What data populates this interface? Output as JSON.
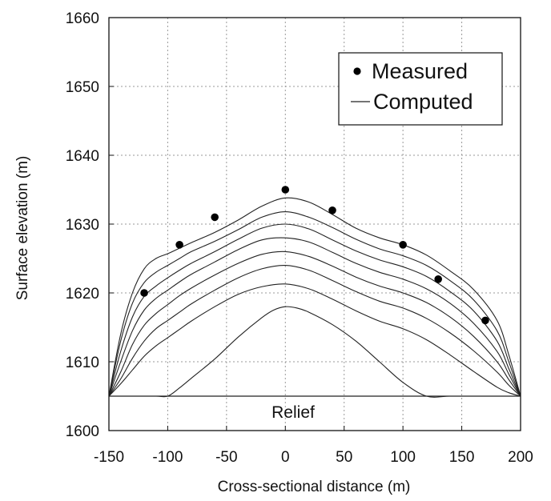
{
  "chart_data": {
    "type": "line",
    "xlabel": "Cross-sectional distance (m)",
    "ylabel": "Surface elevation (m)",
    "xlim": [
      -150,
      200
    ],
    "ylim": [
      1600,
      1660
    ],
    "x_ticks": [
      -150,
      -100,
      -50,
      0,
      50,
      100,
      150,
      200
    ],
    "y_ticks": [
      1600,
      1610,
      1620,
      1630,
      1640,
      1650,
      1660
    ],
    "grid": true,
    "legend_position": "top-right",
    "legend": {
      "measured_label": "Measured",
      "computed_label": "Computed"
    },
    "annotation": "Relief",
    "baseline_y": 1605,
    "measured": {
      "x": [
        -120,
        -90,
        -60,
        0,
        40,
        100,
        130,
        170
      ],
      "y": [
        1620,
        1627,
        1631,
        1635,
        1632,
        1627,
        1622,
        1616
      ]
    },
    "computed": [
      {
        "x": [
          -150,
          -140,
          -130,
          -120,
          -110,
          -100,
          -90,
          -80,
          -60,
          -40,
          -20,
          0,
          20,
          40,
          60,
          80,
          100,
          120,
          140,
          160,
          180,
          190,
          200
        ],
        "y": [
          1605,
          1614,
          1620,
          1623.5,
          1625,
          1625.7,
          1626.5,
          1627.3,
          1628.8,
          1630.6,
          1632.6,
          1633.8,
          1633.2,
          1631.4,
          1629.4,
          1628,
          1627,
          1625.5,
          1623.2,
          1620.5,
          1616,
          1611,
          1605
        ]
      },
      {
        "x": [
          -150,
          -140,
          -130,
          -120,
          -110,
          -100,
          -90,
          -80,
          -60,
          -40,
          -20,
          0,
          20,
          40,
          60,
          80,
          100,
          120,
          140,
          160,
          180,
          190,
          200
        ],
        "y": [
          1605,
          1613,
          1618.5,
          1621.5,
          1623,
          1624,
          1625,
          1626,
          1627.5,
          1629.2,
          1631,
          1631.8,
          1631,
          1629.5,
          1627.8,
          1626.4,
          1625.4,
          1624,
          1621.8,
          1619,
          1614.5,
          1610,
          1605
        ]
      },
      {
        "x": [
          -150,
          -140,
          -130,
          -120,
          -110,
          -100,
          -90,
          -80,
          -60,
          -40,
          -20,
          0,
          20,
          40,
          60,
          80,
          100,
          120,
          140,
          160,
          180,
          190,
          200
        ],
        "y": [
          1605,
          1611.5,
          1616.5,
          1619.5,
          1621,
          1622.2,
          1623.3,
          1624.3,
          1626,
          1627.8,
          1629.4,
          1630,
          1629.3,
          1627.7,
          1626.1,
          1624.8,
          1623.8,
          1622.4,
          1620.2,
          1617.4,
          1613,
          1609,
          1605
        ]
      },
      {
        "x": [
          -150,
          -140,
          -130,
          -120,
          -110,
          -100,
          -90,
          -80,
          -60,
          -40,
          -20,
          0,
          20,
          40,
          60,
          80,
          100,
          120,
          140,
          160,
          180,
          190,
          200
        ],
        "y": [
          1605,
          1610,
          1614.5,
          1617.5,
          1619.2,
          1620.4,
          1621.6,
          1622.7,
          1624.5,
          1626.3,
          1627.7,
          1628,
          1627.4,
          1625.9,
          1624.3,
          1623,
          1622,
          1620.6,
          1618.5,
          1615.6,
          1611.5,
          1608.2,
          1605
        ]
      },
      {
        "x": [
          -150,
          -140,
          -130,
          -120,
          -110,
          -100,
          -90,
          -80,
          -60,
          -40,
          -20,
          0,
          20,
          40,
          60,
          80,
          100,
          120,
          140,
          160,
          180,
          190,
          200
        ],
        "y": [
          1605,
          1608.5,
          1612.5,
          1615.3,
          1617,
          1618.3,
          1619.6,
          1620.7,
          1622.6,
          1624.3,
          1625.6,
          1626,
          1625.3,
          1623.9,
          1622.3,
          1621,
          1620,
          1618.6,
          1616.5,
          1613.7,
          1610,
          1607.4,
          1605
        ]
      },
      {
        "x": [
          -150,
          -140,
          -130,
          -120,
          -110,
          -100,
          -90,
          -80,
          -60,
          -40,
          -20,
          0,
          20,
          40,
          60,
          80,
          100,
          120,
          140,
          160,
          180,
          190,
          200
        ],
        "y": [
          1605,
          1607.5,
          1610.5,
          1613,
          1614.8,
          1616,
          1617.2,
          1618.4,
          1620.4,
          1622.2,
          1623.5,
          1624,
          1623.3,
          1621.8,
          1620.2,
          1618.8,
          1617.8,
          1616.3,
          1614.2,
          1611.6,
          1608.5,
          1606.6,
          1605
        ]
      },
      {
        "x": [
          -150,
          -140,
          -130,
          -120,
          -110,
          -100,
          -90,
          -80,
          -60,
          -40,
          -20,
          0,
          20,
          40,
          60,
          80,
          100,
          120,
          140,
          160,
          180,
          190,
          200
        ],
        "y": [
          1605,
          1606.8,
          1608.8,
          1610.8,
          1612.3,
          1613.5,
          1614.7,
          1615.9,
          1618,
          1619.8,
          1620.9,
          1621.3,
          1620.6,
          1619.1,
          1617.4,
          1615.9,
          1614.8,
          1613.2,
          1611,
          1608.6,
          1606.3,
          1605.5,
          1605
        ]
      },
      {
        "x": [
          -150,
          -130,
          -110,
          -100,
          -90,
          -80,
          -60,
          -40,
          -20,
          -10,
          0,
          10,
          20,
          40,
          60,
          80,
          100,
          120,
          140,
          160,
          170
        ],
        "y": [
          1605,
          1605,
          1605,
          1605,
          1606.2,
          1607.6,
          1610.4,
          1613.6,
          1616.4,
          1617.5,
          1618,
          1617.8,
          1617.2,
          1615.4,
          1613,
          1610,
          1607,
          1605,
          1605,
          1605,
          1605
        ]
      }
    ]
  }
}
